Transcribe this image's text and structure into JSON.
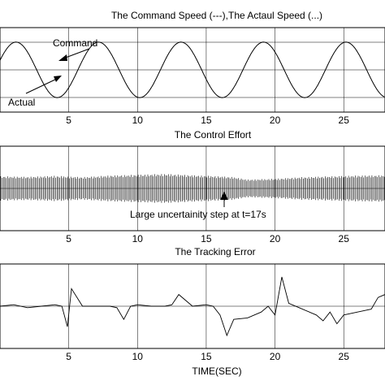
{
  "chart_data": [
    {
      "type": "line",
      "title": "The Command Speed (---),The Actaul Speed (...)",
      "xlim": [
        0,
        28
      ],
      "ylim": [
        -1.6,
        1.6
      ],
      "xticks": [
        "5",
        "10",
        "15",
        "20",
        "25"
      ],
      "grid": true,
      "series": [
        {
          "x": [
            0,
            1,
            2,
            3,
            4,
            5,
            6,
            7,
            8,
            9,
            10,
            11,
            12,
            13,
            14,
            15,
            16,
            17,
            18,
            19,
            20,
            21,
            22,
            23,
            24,
            25,
            26,
            27,
            28
          ],
          "y": [
            0,
            0.87,
            0.87,
            0,
            -0.87,
            -0.87,
            0,
            0.87,
            0.87,
            0,
            -0.87,
            -0.87,
            0,
            0.87,
            0.87,
            0,
            -0.87,
            -0.87,
            0,
            0.87,
            0.87,
            0,
            -0.87,
            -0.87,
            0,
            0.87,
            0.87,
            0,
            -0.87
          ]
        }
      ],
      "annotations": [
        {
          "text": "Command",
          "x": 5.8,
          "y": 1.0
        },
        {
          "text": "Actual",
          "x": 0.8,
          "y": -1.3
        }
      ]
    },
    {
      "type": "line",
      "title": "The Control Effort",
      "xlim": [
        0,
        28
      ],
      "ylim": [
        -2,
        2
      ],
      "xticks": [
        "5",
        "10",
        "15",
        "20",
        "25"
      ],
      "grid": true,
      "series": [
        {
          "x": [
            0,
            2,
            4,
            6,
            8,
            10,
            12,
            14,
            16,
            17,
            18,
            20,
            22,
            24,
            26,
            28
          ],
          "envelope": [
            0.75,
            0.72,
            0.78,
            0.7,
            0.8,
            0.85,
            0.9,
            0.82,
            0.75,
            0.7,
            0.55,
            0.6,
            0.7,
            0.75,
            0.8,
            0.82
          ]
        }
      ],
      "annotations": [
        {
          "text": "Large uncertainity step  at t=17s",
          "x": 17,
          "y": -0.7
        }
      ]
    },
    {
      "type": "line",
      "title": "The Tracking Error",
      "xlim": [
        0,
        28
      ],
      "ylim": [
        -1.2,
        1.2
      ],
      "xticks": [
        "5",
        "10",
        "15",
        "20",
        "25"
      ],
      "xlabel": "TIME(SEC)",
      "grid": true,
      "series": [
        {
          "x": [
            0,
            1,
            2,
            3,
            4,
            4.5,
            4.9,
            5.2,
            6,
            7,
            8,
            8.5,
            9,
            9.5,
            10,
            11,
            12,
            12.5,
            13,
            14,
            15,
            15.5,
            16,
            16.5,
            17,
            18,
            19,
            19.5,
            20,
            20.5,
            21,
            22,
            23,
            23.5,
            24,
            24.5,
            25,
            26,
            27,
            27.5,
            28
          ],
          "y": [
            0,
            0.05,
            -0.05,
            0,
            0.05,
            0,
            -0.7,
            0.6,
            0,
            0,
            0,
            -0.05,
            -0.45,
            0,
            0.05,
            0,
            0,
            0.05,
            0.4,
            0,
            0.05,
            0,
            -0.3,
            -1.0,
            -0.45,
            -0.4,
            -0.2,
            0,
            -0.3,
            1.0,
            0.1,
            -0.1,
            -0.3,
            -0.5,
            -0.2,
            -0.6,
            -0.3,
            -0.2,
            -0.1,
            0.3,
            0.4
          ]
        }
      ]
    }
  ]
}
